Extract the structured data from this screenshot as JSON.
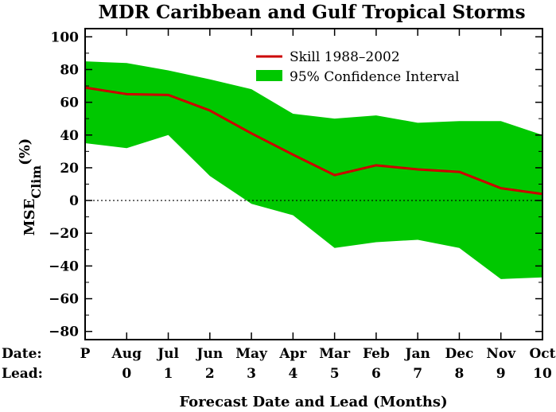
{
  "chart_data": {
    "type": "line",
    "title": "MDR Caribbean and Gulf Tropical Storms",
    "ylabel_main": "MSE",
    "ylabel_sub": "Clim",
    "ylabel_unit": "(%)",
    "xlabel": "Forecast Date and Lead (Months)",
    "row_labels": {
      "date": "Date:",
      "lead": "Lead:"
    },
    "categories": [
      "P",
      "Aug",
      "Jul",
      "Jun",
      "May",
      "Apr",
      "Mar",
      "Feb",
      "Jan",
      "Dec",
      "Nov",
      "Oct"
    ],
    "leads": [
      "",
      "0",
      "1",
      "2",
      "3",
      "4",
      "5",
      "6",
      "7",
      "8",
      "9",
      "10"
    ],
    "ylim": [
      -85,
      105
    ],
    "yticks": [
      100,
      80,
      60,
      40,
      20,
      0,
      -20,
      -40,
      -60,
      -80
    ],
    "ytick_labels": [
      "100",
      "80",
      "60",
      "40",
      "20",
      "0",
      "−20",
      "−40",
      "−60",
      "−80"
    ],
    "series": [
      {
        "name": "Skill 1988–2002",
        "color": "#cc0000",
        "values": [
          69,
          65,
          64.5,
          55,
          41,
          28,
          15.5,
          21.5,
          19,
          17.5,
          7.5,
          4
        ]
      }
    ],
    "band": {
      "name": "95% Confidence Interval",
      "color": "#00c800",
      "upper": [
        85,
        84,
        79.5,
        74,
        68,
        53,
        50,
        52,
        47.5,
        48.5,
        48.5,
        40
      ],
      "lower": [
        35,
        32,
        40,
        15,
        -2,
        -9,
        -29,
        -25.5,
        -24,
        -29,
        -48,
        -47
      ]
    },
    "zero_line": "dotted",
    "legend_position": "top-right"
  }
}
